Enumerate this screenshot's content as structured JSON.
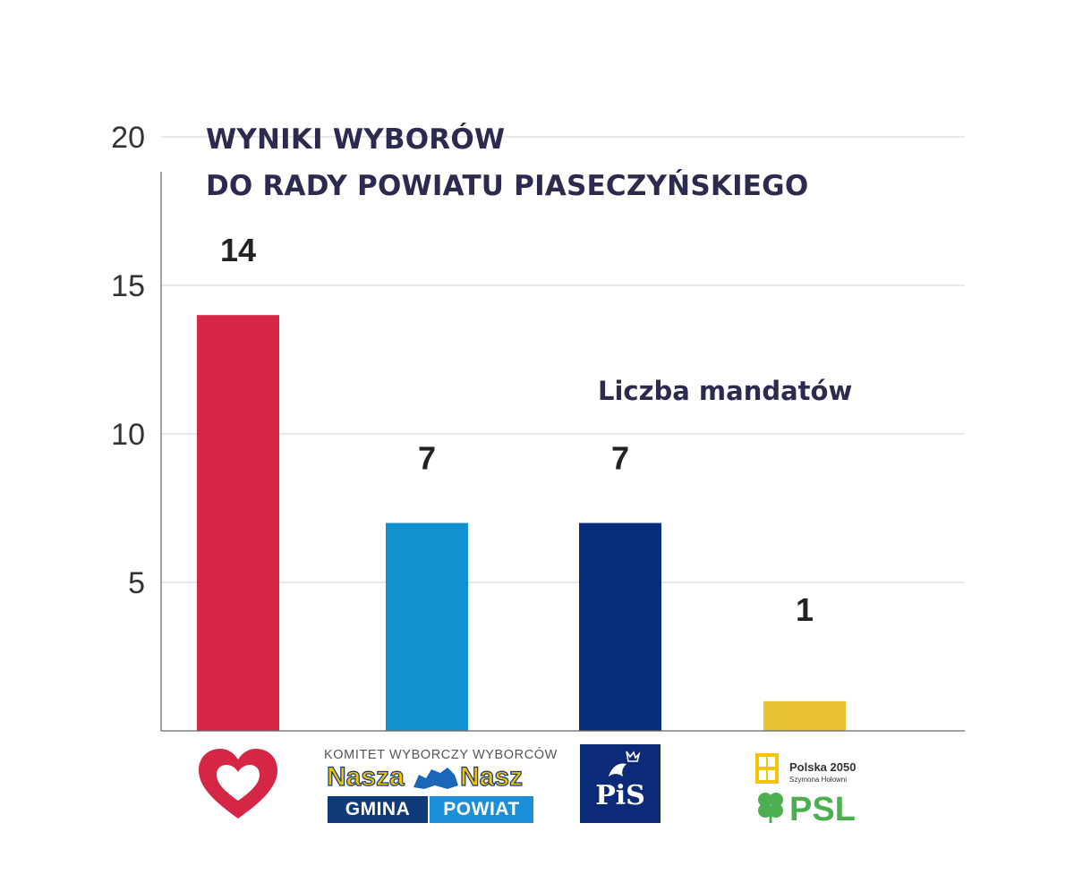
{
  "title": {
    "line1": "WYNIKI WYBORÓW",
    "line2": "DO RADY POWIATU PIASECZYŃSKIEGO"
  },
  "chart_data": {
    "type": "bar",
    "title": "WYNIKI WYBORÓW DO RADY POWIATU PIASECZYŃSKIEGO",
    "series": [
      {
        "name": "Liczba mandatów",
        "values": [
          14,
          7,
          7,
          1
        ],
        "data_labels": [
          "14",
          "7",
          "7",
          "1"
        ]
      }
    ],
    "categories": [
      "heart-logo",
      "Nasza Gmina Nasz Powiat",
      "PiS",
      "Polska 2050 / PSL"
    ],
    "bar_colors": [
      "#d62646",
      "#1390d0",
      "#062c7c",
      "#e8c230"
    ],
    "ylim": [
      0,
      20
    ],
    "yticks": [
      5,
      10,
      15,
      20
    ],
    "grid": true,
    "legend": "top-right"
  },
  "logos": {
    "kw": {
      "top": "KOMITET WYBORCZY WYBORCÓW",
      "left": "Nasza",
      "right": "Nasz",
      "bottom_left": "GMINA",
      "bottom_right": "POWIAT"
    },
    "pis": {
      "text": "PiS"
    },
    "p2050": {
      "name": "Polska 2050",
      "sub": "Szymona Hołowni",
      "psl": "PSL"
    }
  }
}
